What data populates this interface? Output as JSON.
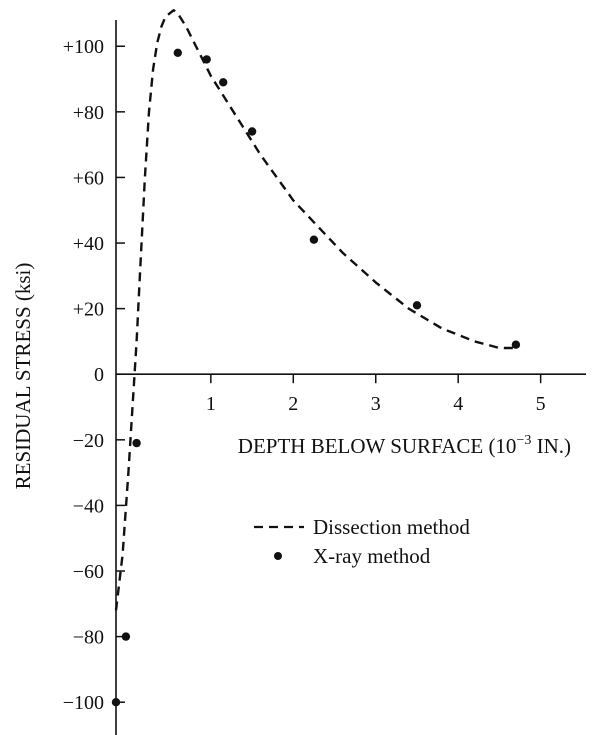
{
  "chart_data": {
    "type": "scatter",
    "title": "",
    "xlabel": "DEPTH BELOW SURFACE (10",
    "xlabel_sup": "−3",
    "xlabel_unit": " IN.)",
    "ylabel": "RESIDUAL STRESS (ksi)",
    "xlim": [
      -0.15,
      5.55
    ],
    "ylim": [
      -110,
      108
    ],
    "x_ticks": [
      1,
      2,
      3,
      4,
      5
    ],
    "x_tick_labels": [
      "1",
      "2",
      "3",
      "4",
      "5"
    ],
    "y_ticks": [
      100,
      80,
      60,
      40,
      20,
      0,
      -20,
      -40,
      -60,
      -80,
      -100
    ],
    "y_tick_labels": [
      "+100",
      "+80",
      "+60",
      "+40",
      "+20",
      "0",
      "−20",
      "−40",
      "−60",
      "−80",
      "−100"
    ],
    "legend": {
      "position": "center-right",
      "entries": [
        {
          "label": "Dissection method",
          "style": "dashed"
        },
        {
          "label": "X-ray method",
          "style": "dot"
        }
      ]
    },
    "series": [
      {
        "name": "Dissection method",
        "style": "dashed",
        "x": [
          -0.15,
          -0.07,
          0.0,
          0.05,
          0.1,
          0.15,
          0.2,
          0.25,
          0.3,
          0.35,
          0.4,
          0.45,
          0.5,
          0.55,
          0.6,
          0.7,
          0.8,
          0.9,
          1.0,
          1.2,
          1.4,
          1.6,
          1.8,
          2.0,
          2.3,
          2.6,
          3.0,
          3.4,
          3.8,
          4.2,
          4.5,
          4.7
        ],
        "y": [
          -72,
          -55,
          -30,
          -10,
          10,
          35,
          60,
          80,
          93,
          101,
          106,
          109,
          110,
          111,
          110,
          106,
          101,
          96,
          91,
          83,
          75,
          67,
          60,
          53,
          45,
          37,
          28,
          20,
          14,
          10,
          8,
          8
        ]
      },
      {
        "name": "X-ray method",
        "style": "dot",
        "x": [
          -0.15,
          -0.03,
          0.1,
          0.6,
          0.95,
          1.15,
          1.5,
          2.25,
          3.5,
          4.7
        ],
        "y": [
          -100,
          -80,
          -21,
          98,
          96,
          89,
          74,
          41,
          21,
          9
        ]
      }
    ]
  }
}
